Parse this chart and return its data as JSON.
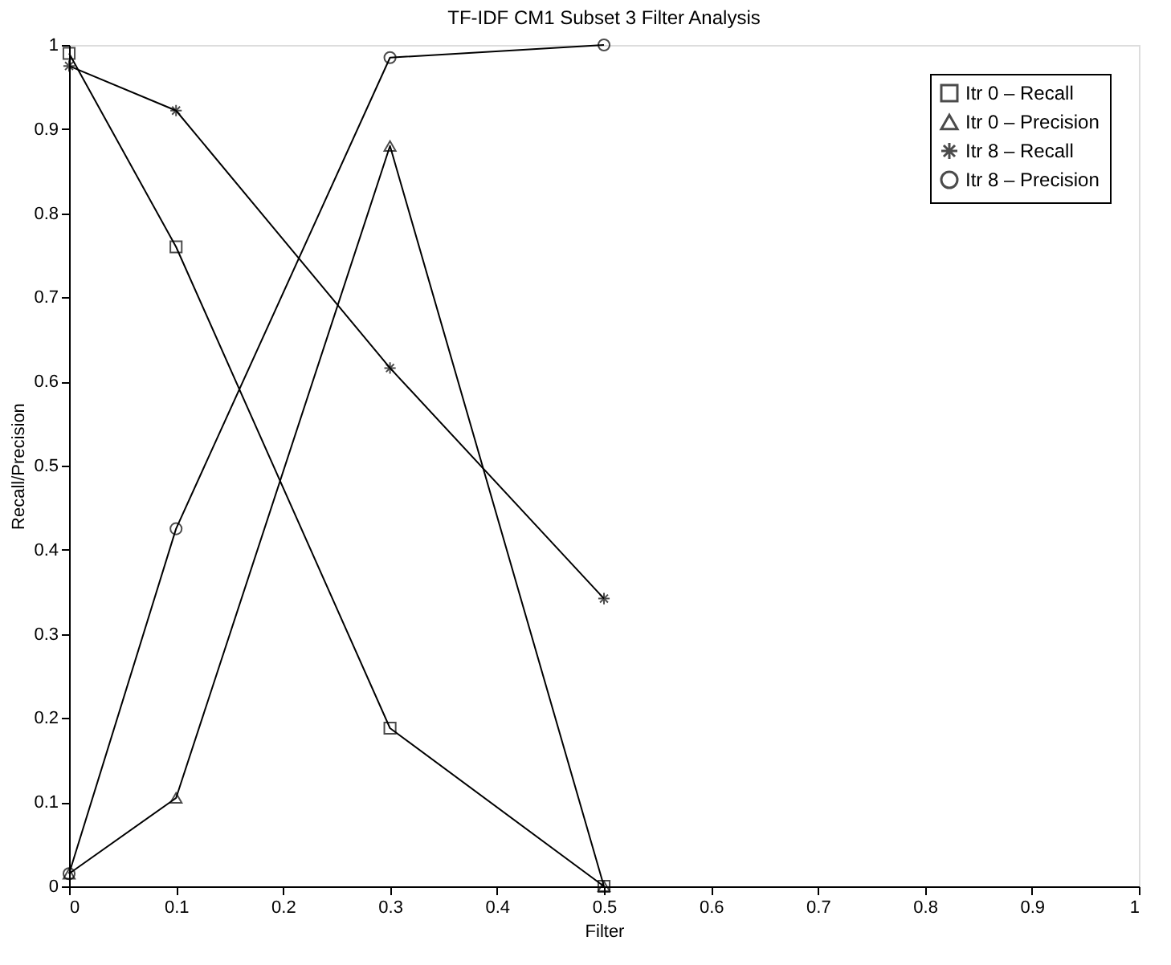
{
  "chart_data": {
    "type": "line",
    "title": "TF-IDF CM1 Subset 3 Filter Analysis",
    "xlabel": "Filter",
    "ylabel": "Recall/Precision",
    "x": [
      0,
      0.1,
      0.3,
      0.5
    ],
    "series": [
      {
        "name": "Itr 0 – Recall",
        "color": "#000000",
        "marker": "square",
        "values": [
          0.99,
          0.76,
          0.188,
          0
        ]
      },
      {
        "name": "Itr 0 – Precision",
        "color": "#000000",
        "marker": "triangle",
        "values": [
          0.015,
          0.105,
          0.88,
          0
        ]
      },
      {
        "name": "Itr 8 – Recall",
        "color": "#000000",
        "marker": "cross",
        "values": [
          0.975,
          0.922,
          0.616,
          0.342
        ]
      },
      {
        "name": "Itr 8 – Precision",
        "color": "#000000",
        "marker": "circle",
        "values": [
          0.015,
          0.425,
          0.985,
          1.0
        ]
      }
    ],
    "xlim": [
      0,
      1
    ],
    "xticks": [
      0,
      0.1,
      0.2,
      0.3,
      0.4,
      0.5,
      0.6,
      0.7,
      0.8,
      0.9,
      1
    ],
    "ylim": [
      0,
      1
    ],
    "yticks": [
      0,
      0.1,
      0.2,
      0.3,
      0.4,
      0.5,
      0.6,
      0.7,
      0.8,
      0.9,
      1
    ],
    "grid": false,
    "legend": "top right",
    "line_style": "solid"
  }
}
